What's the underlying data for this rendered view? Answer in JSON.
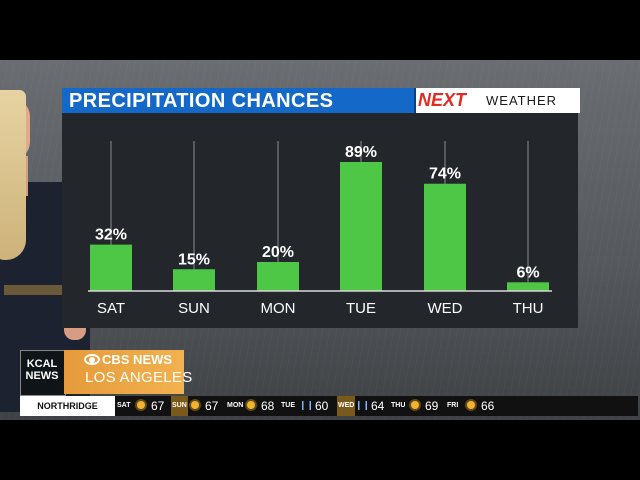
{
  "chart_data": {
    "type": "bar",
    "title": "PRECIPITATION CHANCES",
    "categories": [
      "SAT",
      "SUN",
      "MON",
      "TUE",
      "WED",
      "THU"
    ],
    "values": [
      32,
      15,
      20,
      89,
      74,
      6
    ],
    "data_labels": [
      "32%",
      "15%",
      "20%",
      "89%",
      "74%",
      "6%"
    ],
    "ylim": [
      0,
      100
    ],
    "grid": false,
    "bar_color": "#4ec747",
    "xlabel": "",
    "ylabel": ""
  },
  "brand": {
    "next": "NEXT",
    "weather": "WEATHER"
  },
  "station": {
    "kcal_line1": "KCAL",
    "kcal_line2": "NEWS",
    "network": "CBS NEWS",
    "city": "LOS ANGELES"
  },
  "ticker": {
    "location": "NORTHRIDGE",
    "items": [
      {
        "day": "SAT",
        "icon": "sun-icon",
        "temp": "67"
      },
      {
        "day": "SUN",
        "icon": "sun-icon",
        "temp": "67"
      },
      {
        "day": "MON",
        "icon": "sun-icon",
        "temp": "68"
      },
      {
        "day": "TUE",
        "icon": "rain-icon",
        "temp": "60"
      },
      {
        "day": "WED",
        "icon": "rain-icon",
        "temp": "64"
      },
      {
        "day": "THU",
        "icon": "sun-icon",
        "temp": "69"
      },
      {
        "day": "FRI",
        "icon": "sun-icon",
        "temp": "66"
      }
    ]
  },
  "colors": {
    "title_bar": "#1468c8",
    "panel": "#23262a",
    "brand_red": "#e22c23",
    "station_orange": "#f2b24f"
  }
}
